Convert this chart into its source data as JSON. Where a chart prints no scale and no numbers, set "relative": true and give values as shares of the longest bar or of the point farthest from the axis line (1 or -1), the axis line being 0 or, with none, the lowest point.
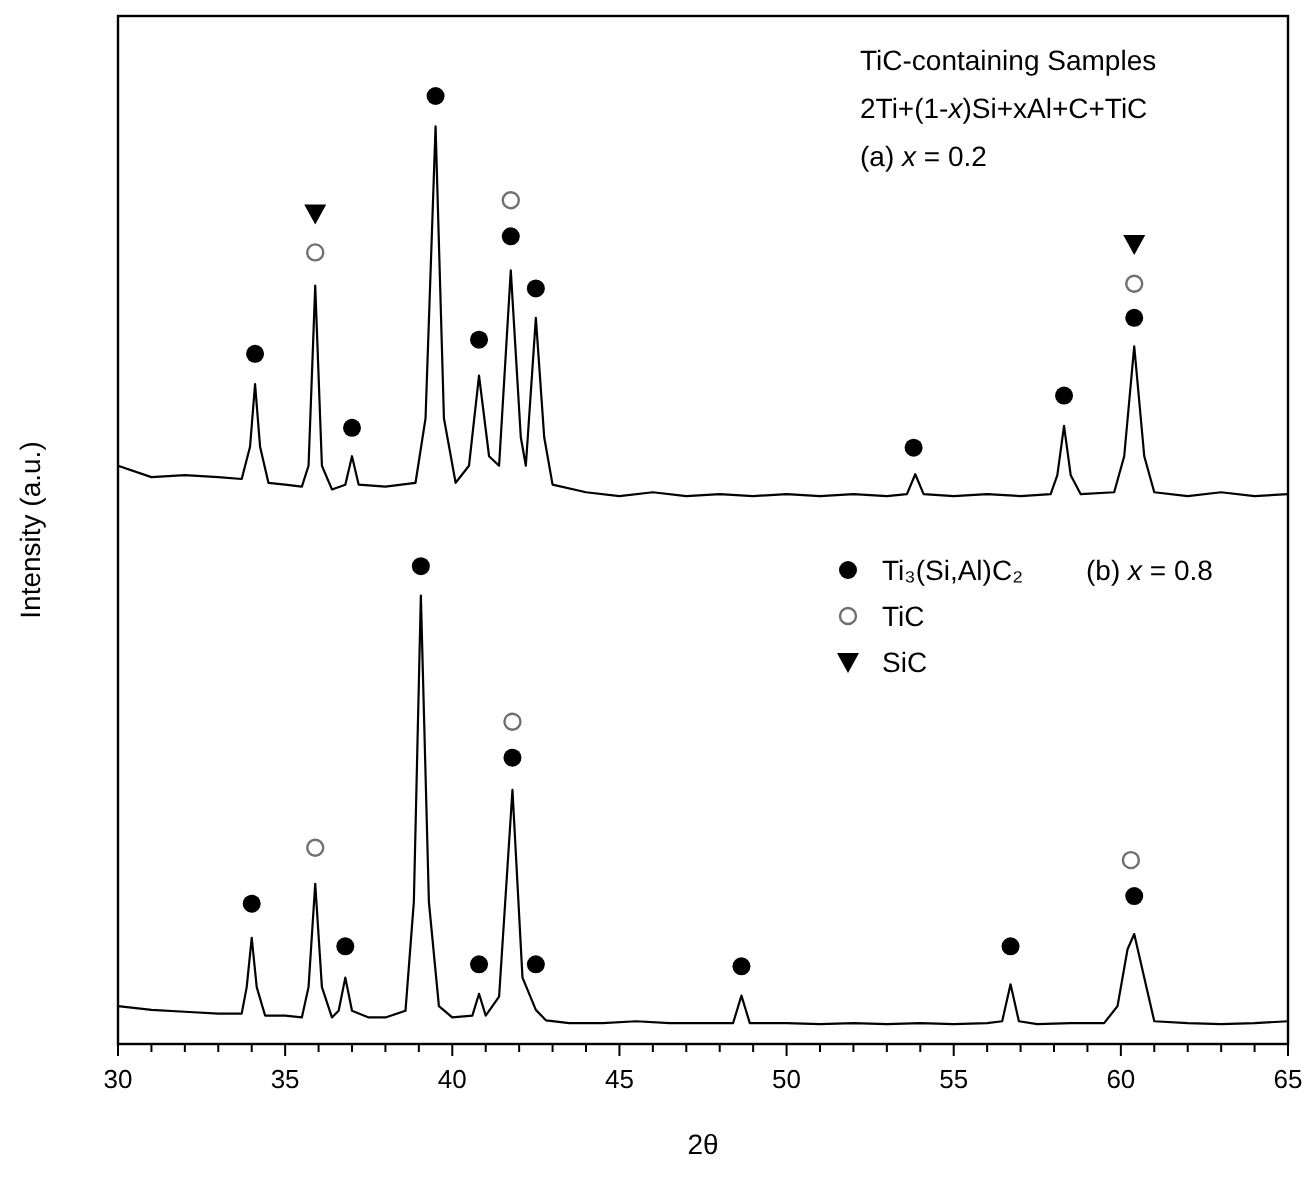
{
  "chart_data": {
    "type": "line",
    "relative": true,
    "xlabel": "2θ",
    "ylabel": "Intensity (a.u.)",
    "xlim": [
      30,
      65
    ],
    "xticks": [
      30,
      {
        "value": 31,
        "label": null
      },
      {
        "value": 32,
        "label": null
      },
      {
        "value": 33,
        "label": null
      },
      {
        "value": 34,
        "label": null
      },
      35,
      {
        "value": 36,
        "label": null
      },
      {
        "value": 37,
        "label": null
      },
      {
        "value": 38,
        "label": null
      },
      {
        "value": 39,
        "label": null
      },
      40,
      {
        "value": 41,
        "label": null
      },
      {
        "value": 42,
        "label": null
      },
      {
        "value": 43,
        "label": null
      },
      {
        "value": 44,
        "label": null
      },
      45,
      {
        "value": 46,
        "label": null
      },
      {
        "value": 47,
        "label": null
      },
      {
        "value": 48,
        "label": null
      },
      {
        "value": 49,
        "label": null
      },
      50,
      {
        "value": 51,
        "label": null
      },
      {
        "value": 52,
        "label": null
      },
      {
        "value": 53,
        "label": null
      },
      {
        "value": 54,
        "label": null
      },
      55,
      {
        "value": 56,
        "label": null
      },
      {
        "value": 57,
        "label": null
      },
      {
        "value": 58,
        "label": null
      },
      {
        "value": 59,
        "label": null
      },
      60,
      {
        "value": 61,
        "label": null
      },
      {
        "value": 62,
        "label": null
      },
      {
        "value": 63,
        "label": null
      },
      {
        "value": 64,
        "label": null
      },
      65
    ],
    "grid": false,
    "legend": "right",
    "line_style": "solid",
    "marker": "none",
    "annotations": [
      "TiC-containing Samples",
      "2Ti+(1-x)Si+xAl+C+TiC",
      "(a) x = 0.2",
      "(b) x = 0.8"
    ],
    "series": [
      {
        "type": "line",
        "color": "#000000",
        "x": [
          30,
          31,
          32,
          33,
          33.7,
          33.95,
          34.1,
          34.25,
          34.5,
          35,
          35.5,
          35.7,
          35.9,
          36.1,
          36.4,
          36.8,
          37,
          37.2,
          38,
          38.9,
          39.2,
          39.5,
          39.75,
          40.1,
          40.5,
          40.8,
          41.1,
          41.4,
          41.75,
          42.05,
          42.2,
          42.5,
          42.75,
          43,
          44,
          45,
          46,
          47,
          48,
          49,
          50,
          51,
          52,
          53,
          53.6,
          53.85,
          54.1,
          55,
          56,
          57,
          57.9,
          58.1,
          58.3,
          58.5,
          58.8,
          59.8,
          60.1,
          60.4,
          60.7,
          61,
          62,
          63,
          64,
          65
        ],
        "values": [
          0.61,
          0.598,
          0.6,
          0.598,
          0.596,
          0.63,
          0.696,
          0.63,
          0.592,
          0.59,
          0.588,
          0.61,
          0.8,
          0.61,
          0.585,
          0.59,
          0.62,
          0.59,
          0.588,
          0.592,
          0.66,
          0.968,
          0.66,
          0.592,
          0.61,
          0.705,
          0.62,
          0.61,
          0.816,
          0.64,
          0.61,
          0.766,
          0.64,
          0.59,
          0.582,
          0.578,
          0.582,
          0.578,
          0.58,
          0.578,
          0.58,
          0.578,
          0.58,
          0.578,
          0.58,
          0.601,
          0.58,
          0.578,
          0.58,
          0.578,
          0.58,
          0.6,
          0.652,
          0.6,
          0.58,
          0.582,
          0.62,
          0.736,
          0.62,
          0.582,
          0.578,
          0.582,
          0.578,
          0.58
        ]
      },
      {
        "type": "line",
        "color": "#000000",
        "x": [
          30,
          31,
          32,
          33,
          33.7,
          33.85,
          34,
          34.15,
          34.4,
          35,
          35.5,
          35.7,
          35.9,
          36.1,
          36.4,
          36.6,
          36.8,
          37,
          37.5,
          38,
          38.6,
          38.85,
          39.06,
          39.3,
          39.6,
          40,
          40.6,
          40.8,
          41,
          41.4,
          41.8,
          42.1,
          42.5,
          42.8,
          43.5,
          44.5,
          45.5,
          46.5,
          47.5,
          48.4,
          48.65,
          48.9,
          50,
          51,
          52,
          53,
          54,
          55,
          56,
          56.45,
          56.7,
          56.95,
          57.5,
          58.5,
          59.5,
          59.9,
          60.2,
          60.4,
          60.7,
          61,
          62,
          63,
          64,
          65
        ],
        "values": [
          0.04,
          0.036,
          0.034,
          0.032,
          0.032,
          0.06,
          0.112,
          0.06,
          0.03,
          0.03,
          0.028,
          0.06,
          0.169,
          0.06,
          0.028,
          0.035,
          0.07,
          0.035,
          0.028,
          0.028,
          0.035,
          0.15,
          0.473,
          0.15,
          0.04,
          0.028,
          0.03,
          0.053,
          0.03,
          0.05,
          0.268,
          0.07,
          0.036,
          0.025,
          0.022,
          0.022,
          0.024,
          0.022,
          0.022,
          0.022,
          0.051,
          0.022,
          0.022,
          0.021,
          0.022,
          0.021,
          0.022,
          0.021,
          0.022,
          0.024,
          0.063,
          0.024,
          0.021,
          0.022,
          0.022,
          0.04,
          0.1,
          0.116,
          0.07,
          0.024,
          0.022,
          0.021,
          0.022,
          0.024
        ]
      },
      {
        "type": "scatter",
        "name": "Ti₃(Si,Al)C₂",
        "color": "#000000",
        "marker": "circle",
        "x": [
          34.1,
          37,
          39.5,
          40.8,
          41.75,
          42.5,
          53.8,
          58.3,
          60.4,
          34,
          36.8,
          39.06,
          40.8,
          41.8,
          42.5,
          48.65,
          56.7,
          60.4
        ],
        "values": [
          0.728,
          0.65,
          1,
          0.743,
          0.852,
          0.797,
          0.629,
          0.684,
          0.766,
          0.148,
          0.103,
          0.504,
          0.084,
          0.302,
          0.084,
          0.082,
          0.103,
          0.156
        ]
      },
      {
        "type": "scatter",
        "name": "TiC",
        "color": "#707070",
        "marker": "circle-open",
        "x": [
          35.9,
          41.75,
          60.4,
          35.9,
          41.8,
          60.3
        ],
        "values": [
          0.835,
          0.89,
          0.802,
          0.207,
          0.34,
          0.194
        ]
      },
      {
        "type": "scatter",
        "name": "SiC",
        "color": "#000000",
        "marker": "triangle",
        "x": [
          35.9,
          60.4
        ],
        "values": [
          0.876,
          0.844
        ]
      }
    ]
  }
}
